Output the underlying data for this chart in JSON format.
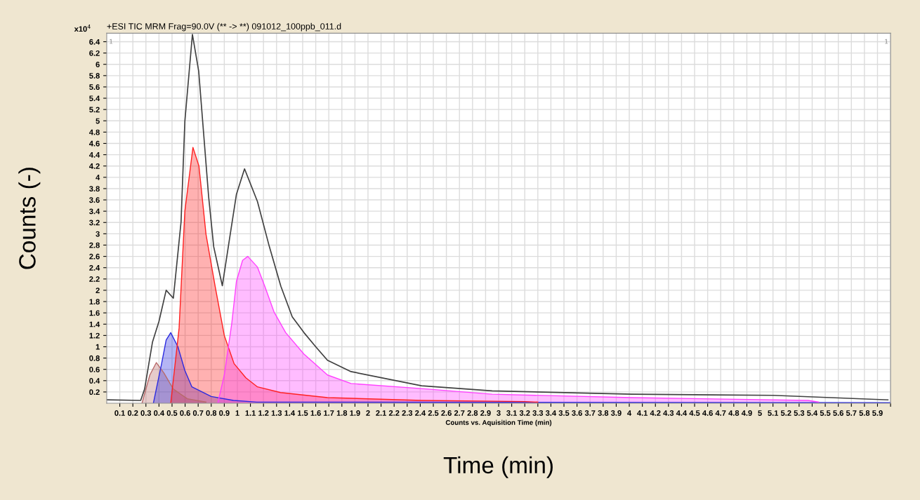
{
  "chart_data": {
    "type": "area",
    "title": "+ESI TIC MRM Frag=90.0V (** -> **) 091012_100ppb_011.d",
    "xlabel": "Time (min)",
    "ylabel": "Counts (-)",
    "annotations": [
      "x10$^{4}$",
      "Counts vs. Aquisition Time (min)",
      "1",
      "1"
    ],
    "xlim": [
      0,
      6
    ],
    "ylim": [
      0,
      6.55
    ],
    "xticks": [
      0.1,
      0.2,
      0.3,
      0.4,
      0.5,
      0.6,
      0.7,
      0.8,
      0.9,
      1,
      1.1,
      1.2,
      1.3,
      1.4,
      1.5,
      1.6,
      1.7,
      1.8,
      1.9,
      2,
      2.1,
      2.2,
      2.3,
      2.4,
      2.5,
      2.6,
      2.7,
      2.8,
      2.9,
      3,
      3.1,
      3.2,
      3.3,
      3.4,
      3.5,
      3.6,
      3.7,
      3.8,
      3.9,
      4,
      4.1,
      4.2,
      4.3,
      4.4,
      4.5,
      4.6,
      4.7,
      4.8,
      4.9,
      5,
      5.1,
      5.2,
      5.3,
      5.4,
      5.5,
      5.6,
      5.7,
      5.8,
      5.9,
      {
        "value": 6,
        "label": null
      }
    ],
    "yticks": [
      0.2,
      0.4,
      0.6,
      0.8,
      1,
      1.2,
      1.4,
      1.6,
      1.8,
      2,
      2.2,
      2.4,
      2.6,
      2.8,
      3,
      3.2,
      3.4,
      3.6,
      3.8,
      4,
      4.2,
      4.4,
      4.6,
      4.8,
      5,
      5.2,
      5.4,
      5.6,
      5.8,
      6,
      6.2,
      6.4
    ],
    "grid": true,
    "legend": false,
    "series": [
      {
        "color": "#b86a6a",
        "x": [
          0.27,
          0.33,
          0.38,
          0.437,
          0.51,
          0.617,
          0.76
        ],
        "values": [
          0,
          0.5,
          0.72,
          0.54,
          0.25,
          0.08,
          0.02
        ]
      },
      {
        "color": "#2a2ae0",
        "x": [
          0.357,
          0.42,
          0.455,
          0.49,
          0.545,
          0.598,
          0.652,
          0.8,
          0.97,
          1.15,
          6.0
        ],
        "values": [
          0,
          0.7,
          1.12,
          1.25,
          1.0,
          0.58,
          0.29,
          0.12,
          0.05,
          0.02,
          0.01
        ]
      },
      {
        "color": "#ff2020",
        "x": [
          0.49,
          0.554,
          0.598,
          0.66,
          0.706,
          0.76,
          0.83,
          0.9,
          0.975,
          1.065,
          1.154,
          1.33,
          1.69,
          2.41,
          3.2,
          3.3
        ],
        "values": [
          0,
          1.33,
          3.4,
          4.53,
          4.2,
          2.99,
          2.07,
          1.2,
          0.7,
          0.45,
          0.29,
          0.19,
          0.1,
          0.05,
          0.03,
          0.02
        ]
      },
      {
        "color": "#ff40ff",
        "x": [
          0.85,
          0.9,
          0.957,
          0.993,
          1.04,
          1.08,
          1.154,
          1.21,
          1.28,
          1.37,
          1.51,
          1.69,
          1.87,
          2.41,
          2.95,
          4.02,
          5.37,
          5.45
        ],
        "values": [
          0,
          0.5,
          1.41,
          2.16,
          2.53,
          2.6,
          2.41,
          2.07,
          1.62,
          1.25,
          0.87,
          0.5,
          0.35,
          0.26,
          0.16,
          0.1,
          0.05,
          0.02
        ]
      },
      {
        "type": "line",
        "color": "#404040",
        "x": [
          0,
          0.26,
          0.29,
          0.35,
          0.4,
          0.455,
          0.51,
          0.569,
          0.598,
          0.656,
          0.704,
          0.742,
          0.78,
          0.819,
          0.885,
          0.94,
          0.993,
          1.055,
          1.154,
          1.244,
          1.333,
          1.42,
          1.51,
          1.6,
          1.69,
          1.87,
          2.41,
          2.95,
          4.02,
          5.1,
          5.98
        ],
        "values": [
          0.06,
          0.05,
          0.25,
          1.08,
          1.45,
          2.0,
          1.86,
          3.21,
          4.99,
          6.53,
          5.88,
          4.77,
          3.66,
          2.77,
          2.08,
          2.91,
          3.7,
          4.15,
          3.57,
          2.78,
          2.07,
          1.53,
          1.25,
          1.0,
          0.76,
          0.56,
          0.31,
          0.22,
          0.16,
          0.14,
          0.06
        ]
      }
    ]
  }
}
